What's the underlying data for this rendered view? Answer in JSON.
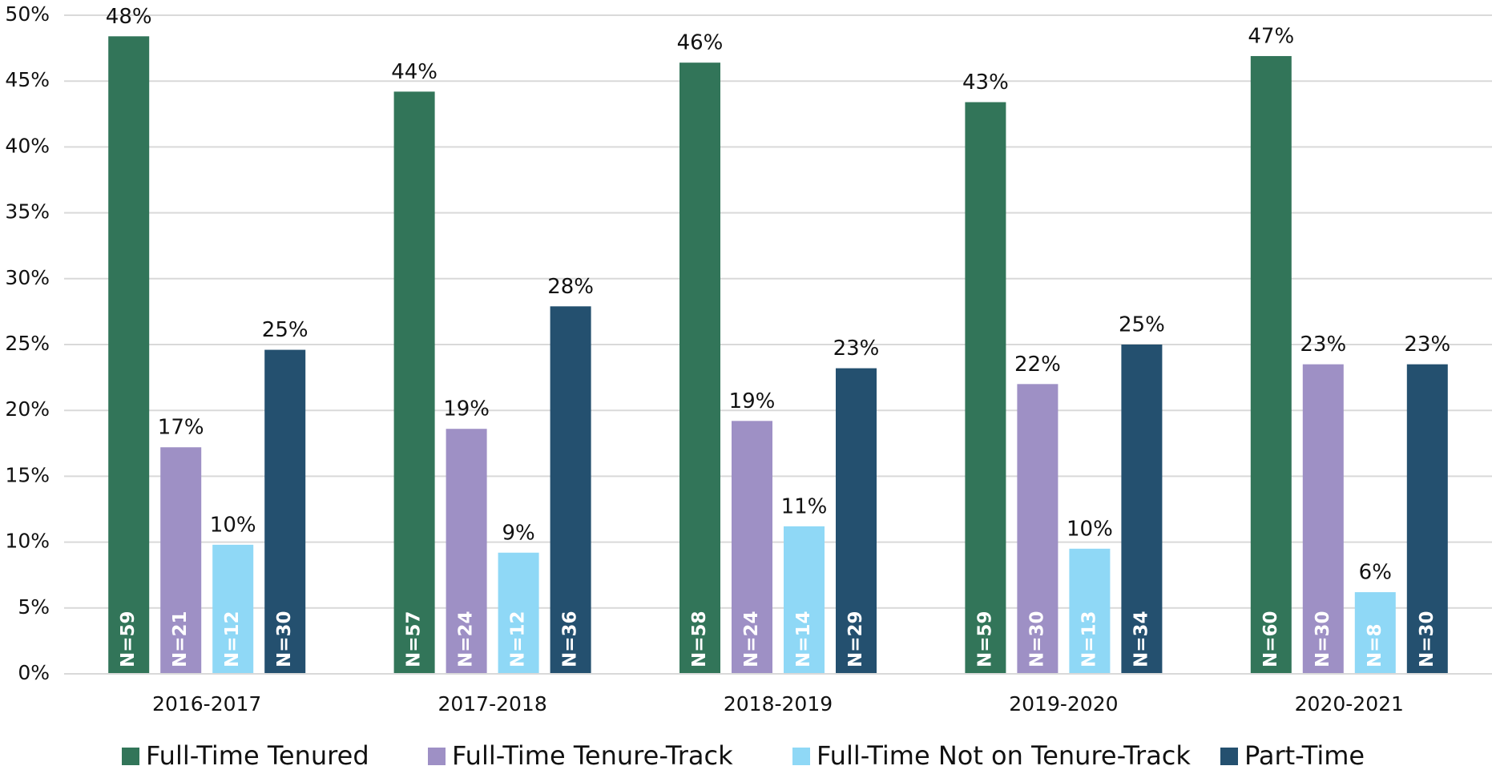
{
  "chart_data": {
    "type": "bar",
    "categories": [
      "2016-2017",
      "2017-2018",
      "2018-2019",
      "2019-2020",
      "2020-2021"
    ],
    "series": [
      {
        "name": "Full-Time Tenured",
        "color": "#327559",
        "values": [
          48.4,
          44.2,
          46.4,
          43.4,
          46.9
        ],
        "value_labels": [
          "48%",
          "44%",
          "46%",
          "43%",
          "47%"
        ],
        "n_labels": [
          "N=59",
          "N=57",
          "N=58",
          "N=59",
          "N=60"
        ]
      },
      {
        "name": "Full-Time Tenure-Track",
        "color": "#9e90c5",
        "values": [
          17.2,
          18.6,
          19.2,
          22.0,
          23.5
        ],
        "value_labels": [
          "17%",
          "19%",
          "19%",
          "22%",
          "23%"
        ],
        "n_labels": [
          "N=21",
          "N=24",
          "N=24",
          "N=30",
          "N=30"
        ]
      },
      {
        "name": "Full-Time Not on Tenure-Track",
        "color": "#8fd8f6",
        "values": [
          9.8,
          9.2,
          11.2,
          9.5,
          6.2
        ],
        "value_labels": [
          "10%",
          "9%",
          "11%",
          "10%",
          "6%"
        ],
        "n_labels": [
          "N=12",
          "N=12",
          "N=14",
          "N=13",
          "N=8"
        ]
      },
      {
        "name": "Part-Time",
        "color": "#24506f",
        "values": [
          24.6,
          27.9,
          23.2,
          25.0,
          23.5
        ],
        "value_labels": [
          "25%",
          "28%",
          "23%",
          "25%",
          "23%"
        ],
        "n_labels": [
          "N=30",
          "N=36",
          "N=29",
          "N=34",
          "N=30"
        ]
      }
    ],
    "ylim": [
      0,
      50
    ],
    "yticks": [
      {
        "value": 0,
        "label": "0%"
      },
      {
        "value": 5,
        "label": "5%"
      },
      {
        "value": 10,
        "label": "10%"
      },
      {
        "value": 15,
        "label": "15%"
      },
      {
        "value": 20,
        "label": "20%"
      },
      {
        "value": 25,
        "label": "25%"
      },
      {
        "value": 30,
        "label": "30%"
      },
      {
        "value": 35,
        "label": "35%"
      },
      {
        "value": 40,
        "label": "40%"
      },
      {
        "value": 45,
        "label": "45%"
      },
      {
        "value": 50,
        "label": "50%"
      }
    ],
    "grid": true,
    "legend": "bottom"
  }
}
